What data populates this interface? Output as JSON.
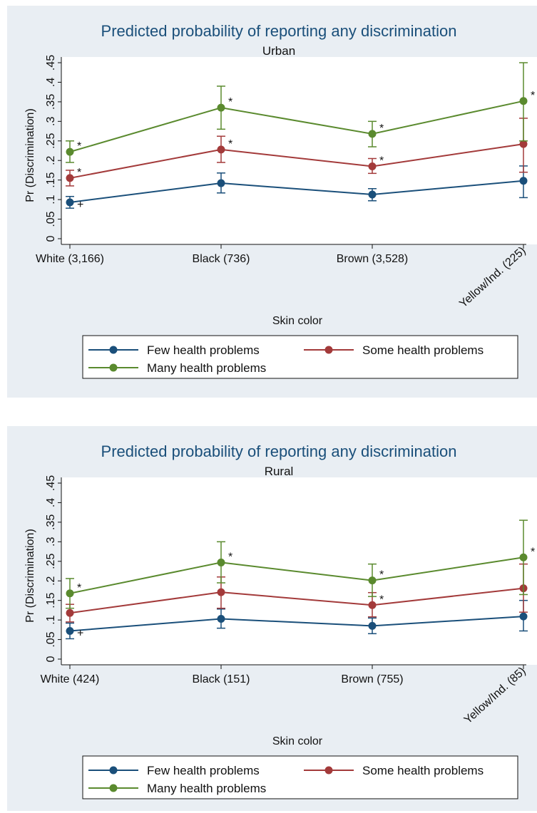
{
  "chart_data": [
    {
      "type": "line",
      "title": "Predicted probability of reporting any discrimination",
      "subtitle": "Urban",
      "xlabel": "Skin color",
      "ylabel": "Pr (Discrimination)",
      "ylim": [
        0,
        0.45
      ],
      "yticks": [
        "0",
        ".05",
        ".1",
        ".15",
        ".2",
        ".25",
        ".3",
        ".35",
        ".4",
        ".45"
      ],
      "ytick_values": [
        0,
        0.05,
        0.1,
        0.15,
        0.2,
        0.25,
        0.3,
        0.35,
        0.4,
        0.45
      ],
      "categories": [
        "White (3,166)",
        "Black (736)",
        "Brown (3,528)",
        "Yellow/Ind. (225)"
      ],
      "legend_position": "bottom",
      "series": [
        {
          "name": "Few health problems",
          "color": "#1a4f7a",
          "values": [
            0.093,
            0.142,
            0.113,
            0.148
          ],
          "ci_low": [
            0.078,
            0.117,
            0.097,
            0.105
          ],
          "ci_high": [
            0.108,
            0.168,
            0.128,
            0.186
          ],
          "marks": [
            "+",
            "",
            "",
            ""
          ]
        },
        {
          "name": "Some health problems",
          "color": "#a33a3a",
          "values": [
            0.155,
            0.228,
            0.185,
            0.242
          ],
          "ci_low": [
            0.135,
            0.195,
            0.167,
            0.17
          ],
          "ci_high": [
            0.175,
            0.262,
            0.205,
            0.308
          ],
          "marks": [
            "*",
            "*",
            "*",
            ""
          ]
        },
        {
          "name": "Many health problems",
          "color": "#5a8a2e",
          "values": [
            0.222,
            0.335,
            0.268,
            0.352
          ],
          "ci_low": [
            0.195,
            0.28,
            0.235,
            0.25
          ],
          "ci_high": [
            0.25,
            0.39,
            0.3,
            0.45
          ],
          "marks": [
            "*",
            "*",
            "*",
            "*"
          ]
        }
      ]
    },
    {
      "type": "line",
      "title": "Predicted probability of reporting any discrimination",
      "subtitle": "Rural",
      "xlabel": "Skin color",
      "ylabel": "Pr (Discrimination)",
      "ylim": [
        0,
        0.45
      ],
      "yticks": [
        "0",
        ".05",
        ".1",
        ".15",
        ".2",
        ".25",
        ".3",
        ".35",
        ".4",
        ".45"
      ],
      "ytick_values": [
        0,
        0.05,
        0.1,
        0.15,
        0.2,
        0.25,
        0.3,
        0.35,
        0.4,
        0.45
      ],
      "categories": [
        "White (424)",
        "Black (151)",
        "Brown (755)",
        "Yellow/Ind. (85)"
      ],
      "legend_position": "bottom",
      "series": [
        {
          "name": "Few health problems",
          "color": "#1a4f7a",
          "values": [
            0.072,
            0.103,
            0.085,
            0.109
          ],
          "ci_low": [
            0.052,
            0.079,
            0.065,
            0.072
          ],
          "ci_high": [
            0.092,
            0.128,
            0.105,
            0.15
          ],
          "marks": [
            "+",
            "",
            "",
            ""
          ]
        },
        {
          "name": "Some health problems",
          "color": "#a33a3a",
          "values": [
            0.118,
            0.171,
            0.138,
            0.181
          ],
          "ci_low": [
            0.095,
            0.13,
            0.108,
            0.12
          ],
          "ci_high": [
            0.14,
            0.21,
            0.17,
            0.243
          ],
          "marks": [
            "",
            "",
            "*",
            ""
          ]
        },
        {
          "name": "Many health problems",
          "color": "#5a8a2e",
          "values": [
            0.168,
            0.247,
            0.201,
            0.26
          ],
          "ci_low": [
            0.13,
            0.195,
            0.16,
            0.165
          ],
          "ci_high": [
            0.206,
            0.3,
            0.243,
            0.355
          ],
          "marks": [
            "*",
            "*",
            "*",
            "*"
          ]
        }
      ]
    }
  ]
}
